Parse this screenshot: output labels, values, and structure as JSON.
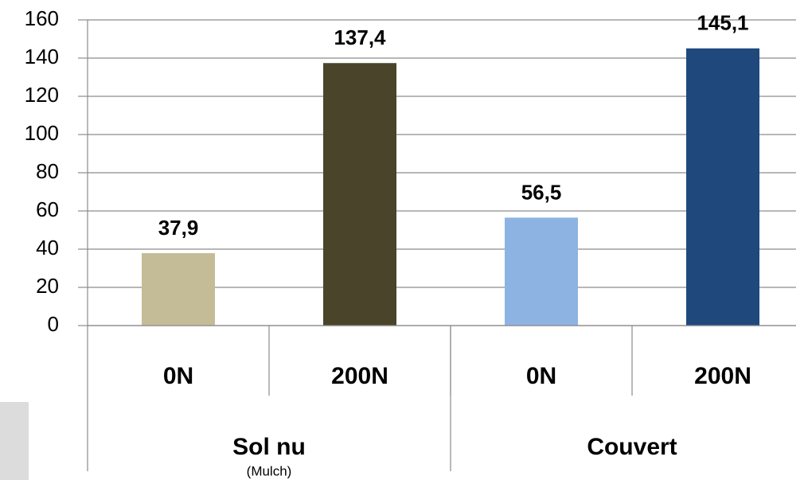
{
  "chart_data": {
    "type": "bar",
    "categories": [
      "0N",
      "200N",
      "0N",
      "200N"
    ],
    "groups": [
      {
        "name": "Sol nu",
        "note": "(Mulch)"
      },
      {
        "name": "Couvert"
      }
    ],
    "values": [
      37.9,
      137.4,
      56.5,
      145.1
    ],
    "value_labels": [
      "37,9",
      "137,4",
      "56,5",
      "145,1"
    ],
    "colors": [
      "#c4bc96",
      "#4a452a",
      "#8db3e2",
      "#1f497d"
    ],
    "ylim": [
      0,
      160
    ],
    "yticks": [
      0,
      20,
      40,
      60,
      80,
      100,
      120,
      140,
      160
    ],
    "grid": true
  }
}
